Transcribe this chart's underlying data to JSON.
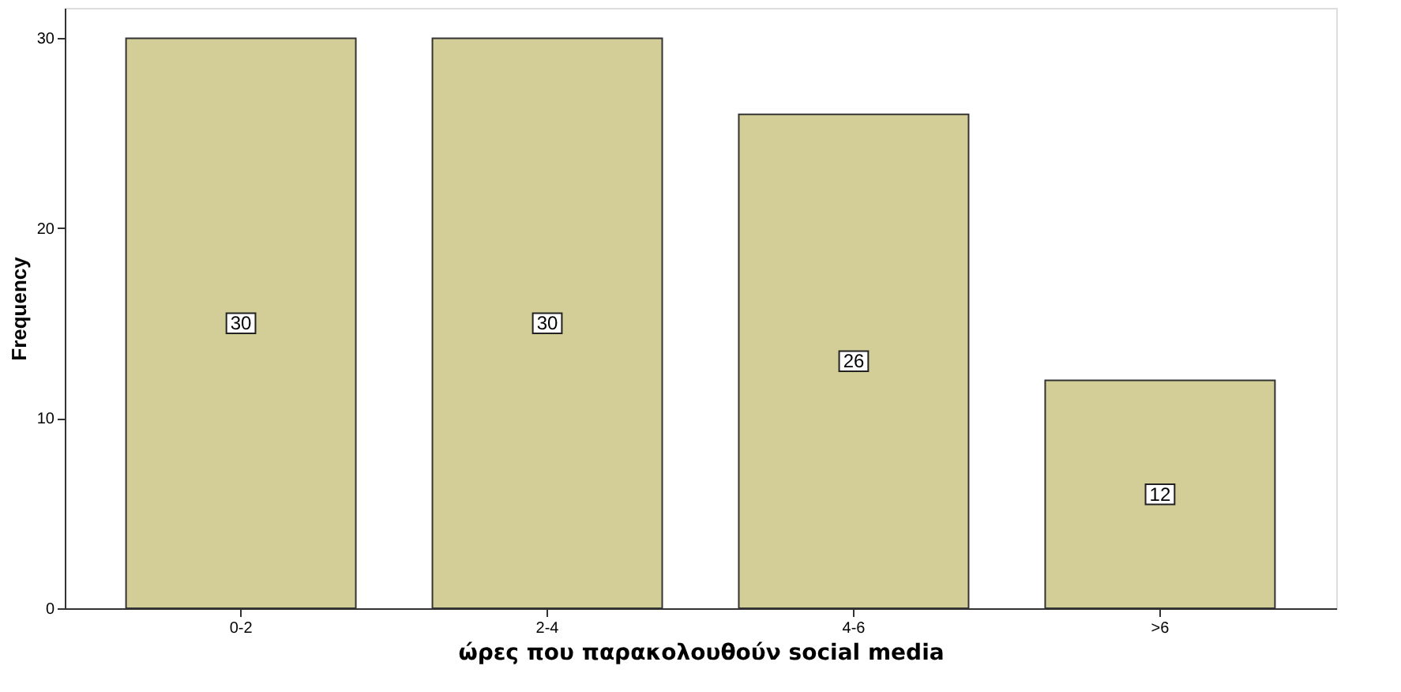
{
  "chart_data": {
    "type": "bar",
    "xlabel": "ώρες που παρακολουθούν social media",
    "ylabel": "Frequency",
    "categories": [
      "0-2",
      "2-4",
      "4-6",
      ">6"
    ],
    "values": [
      30,
      30,
      26,
      12
    ],
    "color": "#d3ce97",
    "ylim": [
      0,
      31.6
    ],
    "yticks": [
      0,
      10,
      20,
      30
    ],
    "grid": false,
    "data_labels": true
  }
}
